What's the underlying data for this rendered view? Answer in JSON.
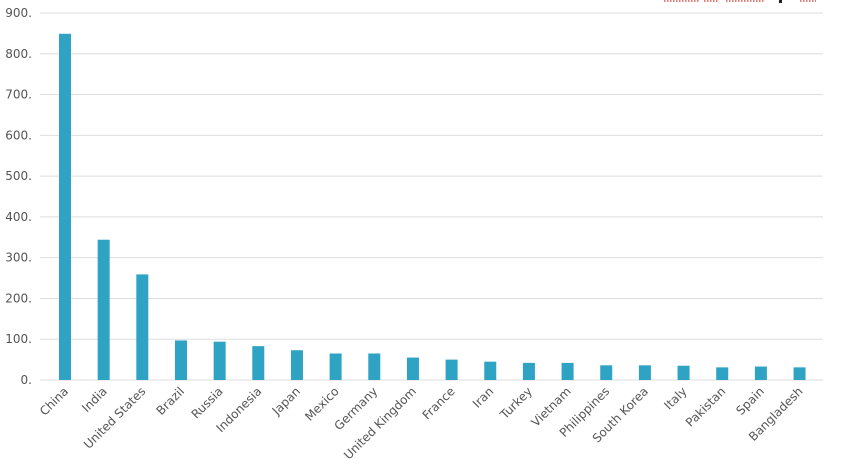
{
  "chart_data": {
    "type": "bar",
    "title": "",
    "xlabel": "",
    "ylabel": "",
    "ylim": [
      0,
      900
    ],
    "yticks": [
      0,
      100,
      200,
      300,
      400,
      500,
      600,
      700,
      800,
      900
    ],
    "ytick_labels": [
      "0.",
      "100.",
      "200.",
      "300.",
      "400.",
      "500.",
      "600.",
      "700.",
      "800.",
      "900."
    ],
    "grid": true,
    "bar_color": "#2ea3c3",
    "legend_position": "top-right",
    "categories": [
      "China",
      "India",
      "United States",
      "Brazil",
      "Russia",
      "Indonesia",
      "Japan",
      "Mexico",
      "Germany",
      "United Kingdom",
      "France",
      "Iran",
      "Turkey",
      "Vietnam",
      "Philippines",
      "South Korea",
      "Italy",
      "Pakistan",
      "Spain",
      "Bangladesh"
    ],
    "values": [
      849,
      344,
      259,
      97,
      94,
      83,
      73,
      65,
      65,
      55,
      50,
      45,
      42,
      42,
      36,
      36,
      35,
      31,
      33,
      31
    ]
  }
}
